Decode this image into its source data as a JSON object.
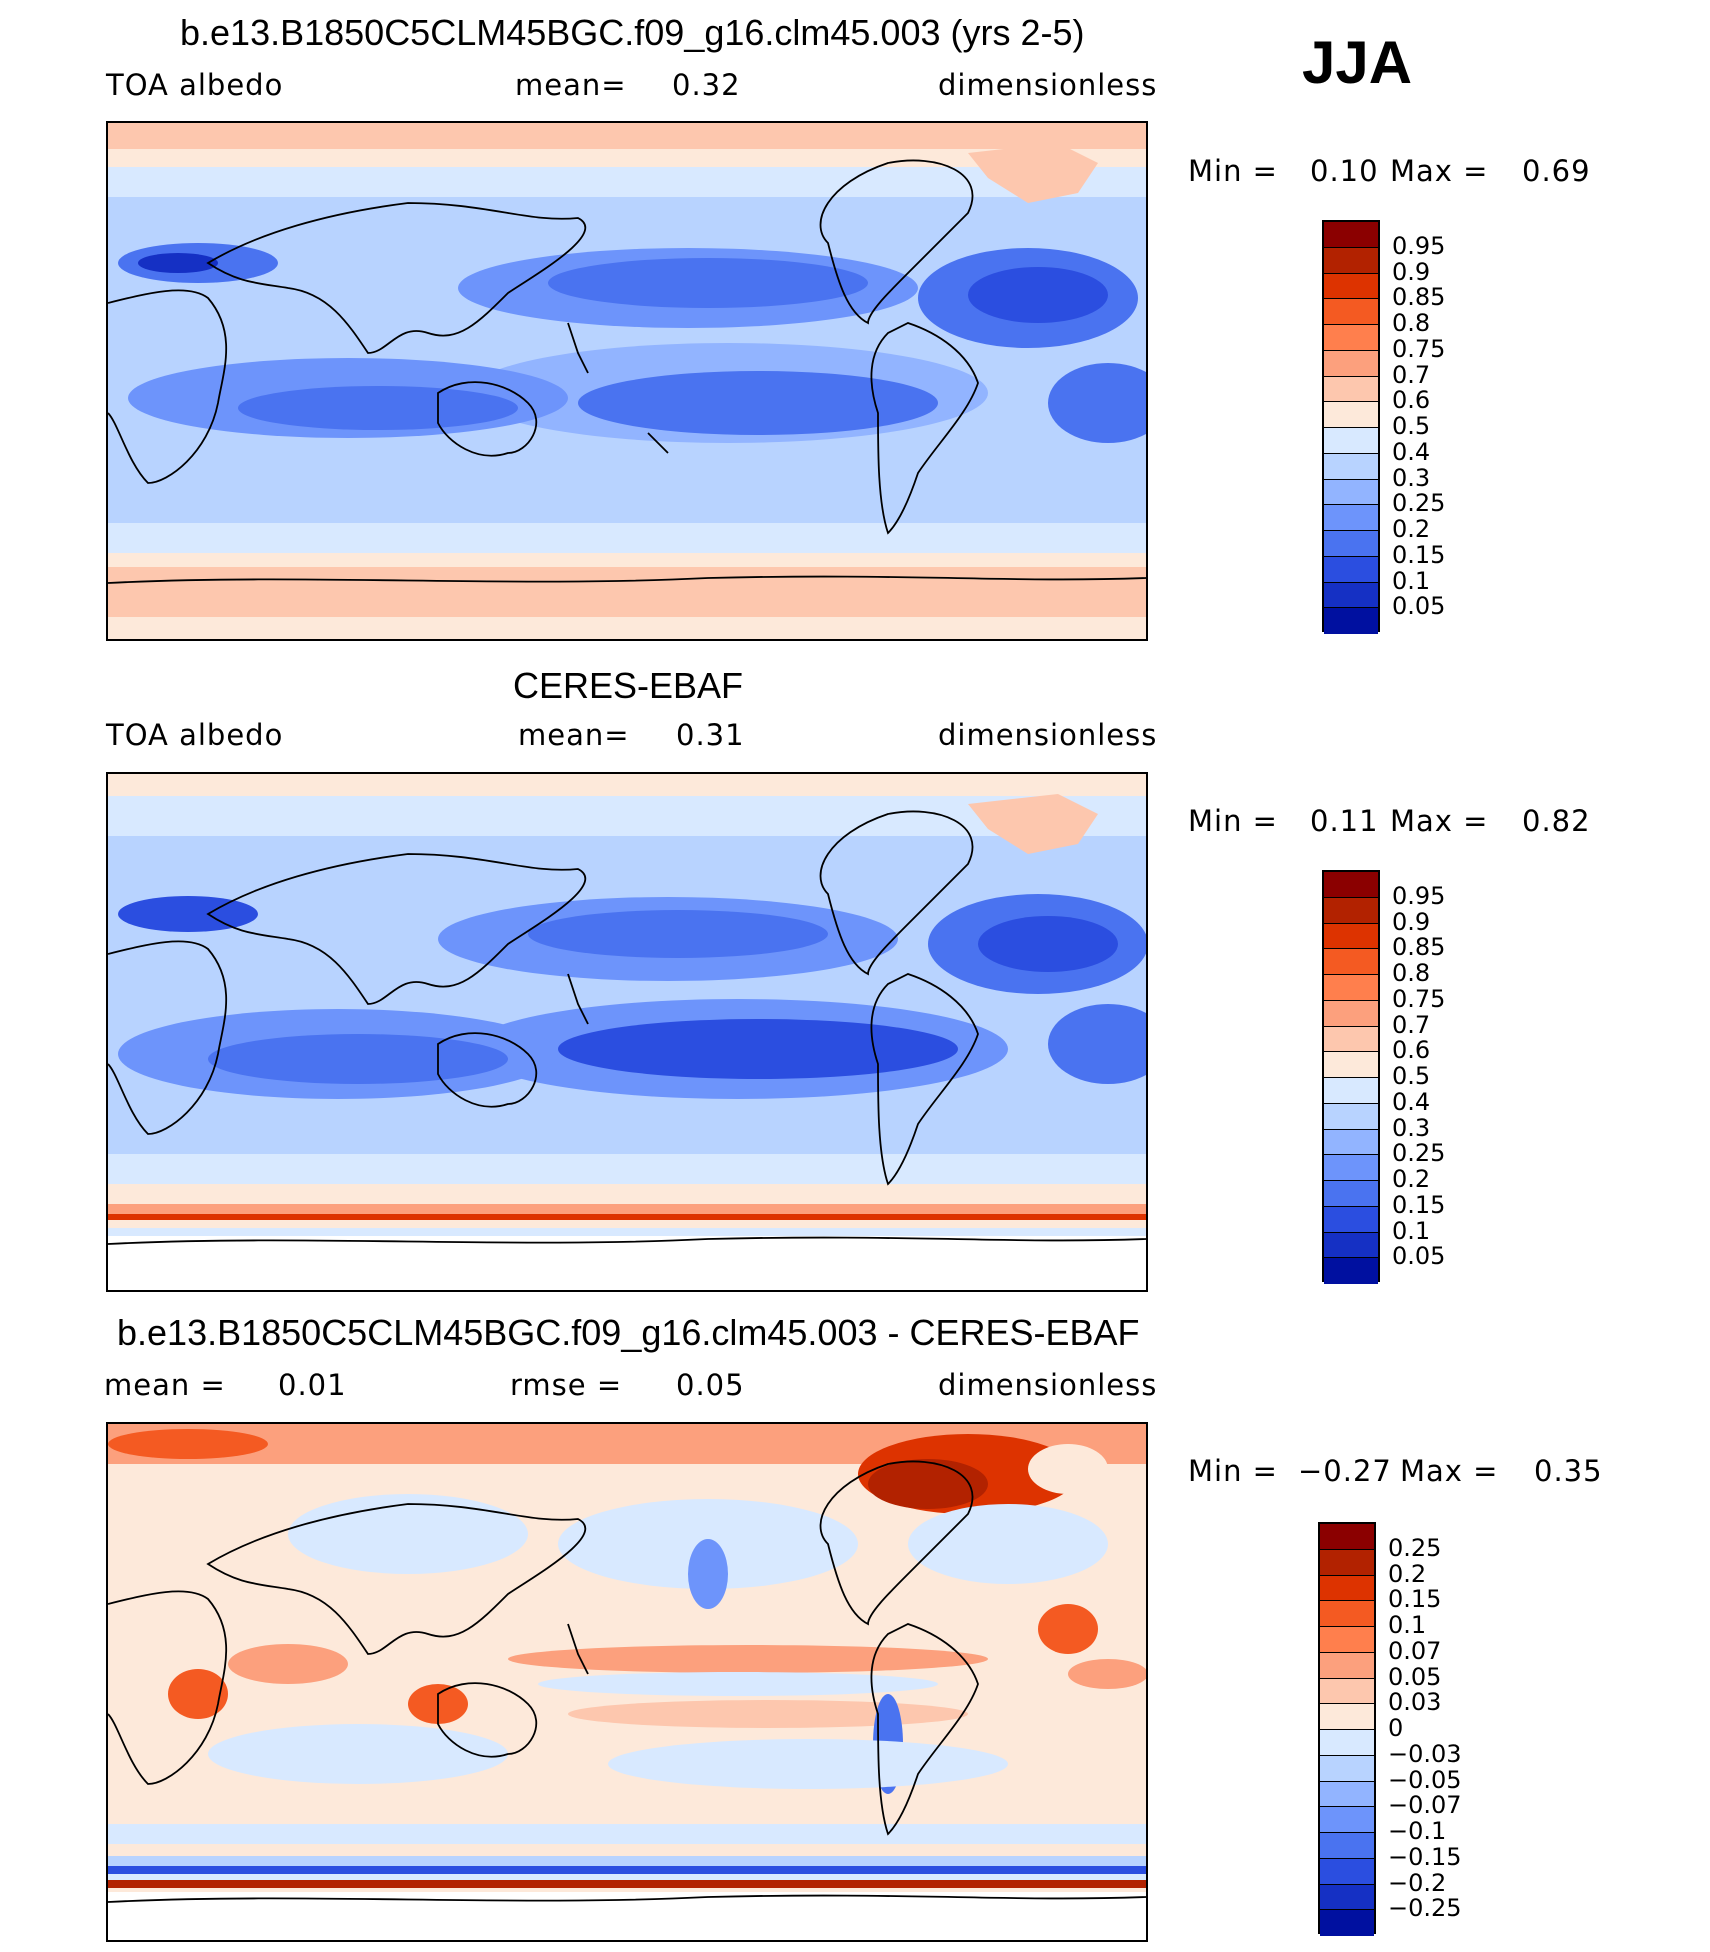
{
  "season": "JJA",
  "panels": [
    {
      "title": "b.e13.B1850C5CLM45BGC.f09_g16.clm45.003 (yrs 2-5)",
      "left_label": "TOA albedo",
      "mean_label": "mean=",
      "mean_value": "0.32",
      "units": "dimensionless",
      "min_label": "Min =",
      "min_value": "0.10",
      "max_label": "Max =",
      "max_value": "0.69"
    },
    {
      "title": "CERES-EBAF",
      "left_label": "TOA albedo",
      "mean_label": "mean=",
      "mean_value": "0.31",
      "units": "dimensionless",
      "min_label": "Min =",
      "min_value": "0.11",
      "max_label": "Max =",
      "max_value": "0.82"
    },
    {
      "title": "b.e13.B1850C5CLM45BGC.f09_g16.clm45.003 - CERES-EBAF",
      "mean_label": "mean =",
      "mean_value": "0.01",
      "rmse_label": "rmse =",
      "rmse_value": "0.05",
      "units": "dimensionless",
      "min_label": "Min =",
      "min_value": "−0.27",
      "max_label": "Max =",
      "max_value": "0.35"
    }
  ],
  "colorbar_abs": {
    "labels": [
      "0.95",
      "0.9",
      "0.85",
      "0.8",
      "0.75",
      "0.7",
      "0.6",
      "0.5",
      "0.4",
      "0.3",
      "0.25",
      "0.2",
      "0.15",
      "0.1",
      "0.05"
    ],
    "colors": [
      "#8b0000",
      "#b22200",
      "#dd3300",
      "#f45a22",
      "#ff7f4d",
      "#fca07d",
      "#fdc7ae",
      "#fde9da",
      "#d8e9ff",
      "#b8d3ff",
      "#92b4ff",
      "#6d94fb",
      "#4a73f0",
      "#2b4ee0",
      "#1530c4",
      "#0010a0"
    ]
  },
  "colorbar_diff": {
    "labels": [
      "0.25",
      "0.2",
      "0.15",
      "0.1",
      "0.07",
      "0.05",
      "0.03",
      "0",
      "−0.03",
      "−0.05",
      "−0.07",
      "−0.1",
      "−0.15",
      "−0.2",
      "−0.25"
    ],
    "colors": [
      "#8b0000",
      "#b22200",
      "#dd3300",
      "#f45a22",
      "#ff7f4d",
      "#fca07d",
      "#fdc7ae",
      "#fde9da",
      "#d8e9ff",
      "#b8d3ff",
      "#92b4ff",
      "#6d94fb",
      "#4a73f0",
      "#2b4ee0",
      "#1530c4",
      "#0010a0"
    ]
  }
}
